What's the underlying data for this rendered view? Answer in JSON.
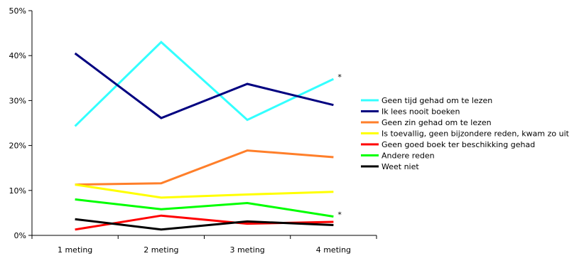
{
  "chart_data": {
    "type": "line",
    "title": "",
    "xlabel": "",
    "ylabel": "",
    "categories": [
      "1 meting",
      "2 meting",
      "3 meting",
      "4 meting"
    ],
    "ylim": [
      0,
      50
    ],
    "yticks": [
      "0%",
      "10%",
      "20%",
      "30%",
      "40%",
      "50%"
    ],
    "grid": false,
    "legend_position": "right",
    "series": [
      {
        "name": "Geen tijd gehad om te lezen",
        "color": "#33ffff",
        "values": [
          24.3,
          43.0,
          25.7,
          34.8
        ],
        "annotation": "*"
      },
      {
        "name": "Ik lees nooit boeken",
        "color": "#000080",
        "values": [
          40.5,
          26.1,
          33.7,
          29.0
        ],
        "annotation": ""
      },
      {
        "name": "Geen zin gehad om te lezen",
        "color": "#ff7f2a",
        "values": [
          11.3,
          11.6,
          18.9,
          17.4
        ],
        "annotation": ""
      },
      {
        "name": "Is toevallig, geen bijzondere reden, kwam zo uit",
        "color": "#ffff00",
        "values": [
          11.3,
          8.4,
          9.1,
          9.7
        ],
        "annotation": ""
      },
      {
        "name": "Geen goed boek ter beschikking gehad",
        "color": "#ff0000",
        "values": [
          1.3,
          4.4,
          2.6,
          3.0
        ],
        "annotation": ""
      },
      {
        "name": "Andere reden",
        "color": "#00ff00",
        "values": [
          8.0,
          5.8,
          7.2,
          4.2
        ],
        "annotation": "*"
      },
      {
        "name": "Weet niet",
        "color": "#000000",
        "values": [
          3.6,
          1.3,
          3.1,
          2.3
        ],
        "annotation": ""
      }
    ]
  }
}
